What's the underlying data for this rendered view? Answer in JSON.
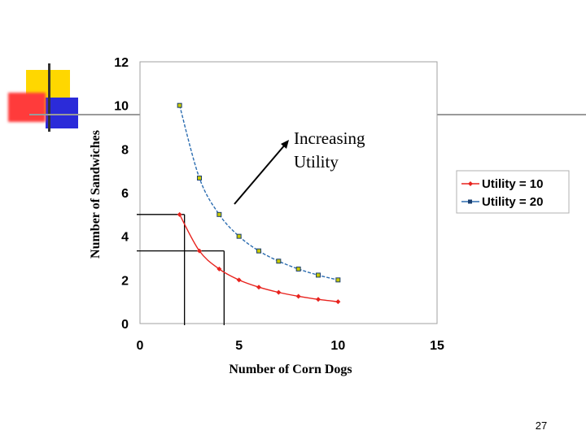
{
  "slide": {
    "page_number": "27",
    "annotation_line1": "Increasing",
    "annotation_line2": "Utility"
  },
  "decoration": {
    "yellow": "#FFD700",
    "red": "#FF3B3B",
    "blue": "#2B2BD9",
    "line": "#333333"
  },
  "chart_data": {
    "type": "line",
    "xlabel": "Number of Corn Dogs",
    "ylabel": "Number of Sandwiches",
    "xlim": [
      0,
      15
    ],
    "ylim": [
      0,
      12
    ],
    "x_ticks": [
      "0",
      "5",
      "10",
      "15"
    ],
    "y_ticks": [
      "0",
      "2",
      "4",
      "6",
      "8",
      "10",
      "12"
    ],
    "grid": false,
    "legend_position": "right",
    "series": [
      {
        "name": "Utility = 10",
        "color": "#E8231E",
        "marker": "diamond",
        "x": [
          2,
          3,
          4,
          5,
          6,
          7,
          8,
          9,
          10
        ],
        "y": [
          5,
          3.33,
          2.5,
          2,
          1.67,
          1.43,
          1.25,
          1.11,
          1
        ]
      },
      {
        "name": "Utility = 20",
        "color": "#2B6CB0",
        "marker": "square",
        "x": [
          2,
          3,
          4,
          5,
          6,
          7,
          8,
          9,
          10
        ],
        "y": [
          10,
          6.67,
          5,
          4,
          3.33,
          2.86,
          2.5,
          2.22,
          2
        ]
      }
    ],
    "reference_lines": [
      {
        "x": 2,
        "y": 5
      },
      {
        "x": 4,
        "y": 3.33
      }
    ]
  }
}
